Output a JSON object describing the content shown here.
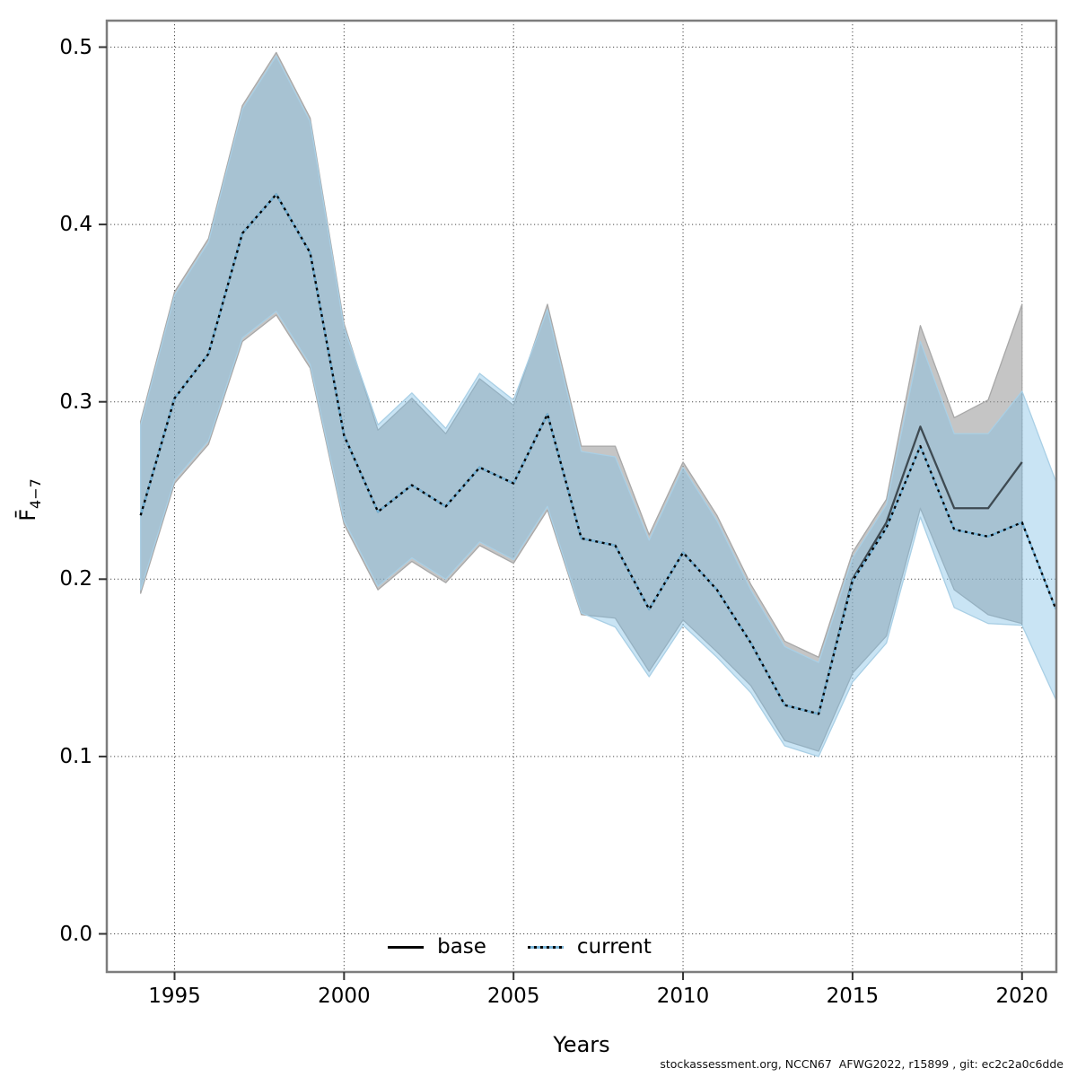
{
  "figure": {
    "footer": "stockassessment.org, NCCN67  AFWG2022, r15899 , git: ec2c2a0c6dde"
  },
  "axes": {
    "xlabel": "Years",
    "ylabel_main": "F̄",
    "ylabel_sub": "4−7",
    "x_ticks": [
      1995,
      2000,
      2005,
      2010,
      2015,
      2020
    ],
    "y_tick_labels": [
      "0.0",
      "0.1",
      "0.2",
      "0.3",
      "0.4",
      "0.5"
    ],
    "y_tick_values": [
      0.0,
      0.1,
      0.2,
      0.3,
      0.4,
      0.5
    ]
  },
  "legend": {
    "items": [
      {
        "label": "base",
        "style": "solid"
      },
      {
        "label": "current",
        "style": "dotted"
      }
    ]
  },
  "colors": {
    "base_band_fill": "rgba(150,150,150,0.55)",
    "base_band_edge": "#a8a8a8",
    "current_band_fill": "rgba(126,191,229,0.42)",
    "current_band_edge": "#a9cfe5",
    "base_line": "#333d44",
    "current_line_under": "#76b4d8",
    "current_line_dash": "#000000",
    "frame": "#7d7d7d",
    "gridline": "#3a3a3a"
  },
  "chart_data": {
    "type": "line",
    "title": "",
    "xlabel": "Years",
    "ylabel": "Fbar(4-7)",
    "xlim": [
      1993.0,
      2021.0
    ],
    "ylim": [
      -0.021,
      0.515
    ],
    "grid": "dotted both axes at labeled ticks",
    "legend_position": "bottom center inside plot",
    "series": [
      {
        "name": "base",
        "line_style": "solid",
        "band": "gray 95% CI",
        "years": [
          1994,
          1995,
          1996,
          1997,
          1998,
          1999,
          2000,
          2001,
          2002,
          2003,
          2004,
          2005,
          2006,
          2007,
          2008,
          2009,
          2010,
          2011,
          2012,
          2013,
          2014,
          2015,
          2016,
          2017,
          2018,
          2019,
          2020
        ],
        "mean": [
          0.236,
          0.302,
          0.327,
          0.395,
          0.417,
          0.384,
          0.281,
          0.238,
          0.253,
          0.241,
          0.263,
          0.254,
          0.293,
          0.223,
          0.219,
          0.183,
          0.215,
          0.194,
          0.164,
          0.129,
          0.124,
          0.2,
          0.232,
          0.286,
          0.24,
          0.24,
          0.266
        ],
        "lo": [
          0.192,
          0.254,
          0.276,
          0.334,
          0.349,
          0.319,
          0.231,
          0.194,
          0.21,
          0.198,
          0.219,
          0.209,
          0.239,
          0.18,
          0.178,
          0.148,
          0.177,
          0.159,
          0.14,
          0.109,
          0.103,
          0.147,
          0.168,
          0.24,
          0.194,
          0.18,
          0.175
        ],
        "hi": [
          0.289,
          0.362,
          0.392,
          0.467,
          0.497,
          0.46,
          0.344,
          0.284,
          0.302,
          0.282,
          0.313,
          0.298,
          0.355,
          0.275,
          0.275,
          0.225,
          0.266,
          0.236,
          0.197,
          0.165,
          0.156,
          0.215,
          0.245,
          0.343,
          0.291,
          0.301,
          0.355
        ]
      },
      {
        "name": "current",
        "line_style": "dotted",
        "band": "light blue 95% CI",
        "years": [
          1994,
          1995,
          1996,
          1997,
          1998,
          1999,
          2000,
          2001,
          2002,
          2003,
          2004,
          2005,
          2006,
          2007,
          2008,
          2009,
          2010,
          2011,
          2012,
          2013,
          2014,
          2015,
          2016,
          2017,
          2018,
          2019,
          2020,
          2021
        ],
        "mean": [
          0.236,
          0.302,
          0.327,
          0.395,
          0.417,
          0.384,
          0.281,
          0.238,
          0.253,
          0.241,
          0.263,
          0.254,
          0.293,
          0.223,
          0.219,
          0.183,
          0.215,
          0.194,
          0.164,
          0.129,
          0.124,
          0.199,
          0.229,
          0.275,
          0.228,
          0.224,
          0.232,
          0.183
        ],
        "lo": [
          0.194,
          0.256,
          0.278,
          0.336,
          0.351,
          0.321,
          0.233,
          0.196,
          0.212,
          0.2,
          0.221,
          0.211,
          0.241,
          0.181,
          0.173,
          0.145,
          0.174,
          0.156,
          0.136,
          0.106,
          0.1,
          0.142,
          0.164,
          0.235,
          0.184,
          0.175,
          0.174,
          0.132
        ],
        "hi": [
          0.287,
          0.36,
          0.39,
          0.465,
          0.495,
          0.458,
          0.342,
          0.287,
          0.305,
          0.285,
          0.316,
          0.301,
          0.352,
          0.272,
          0.269,
          0.222,
          0.263,
          0.233,
          0.194,
          0.162,
          0.153,
          0.212,
          0.242,
          0.334,
          0.282,
          0.282,
          0.306,
          0.255
        ]
      }
    ]
  }
}
